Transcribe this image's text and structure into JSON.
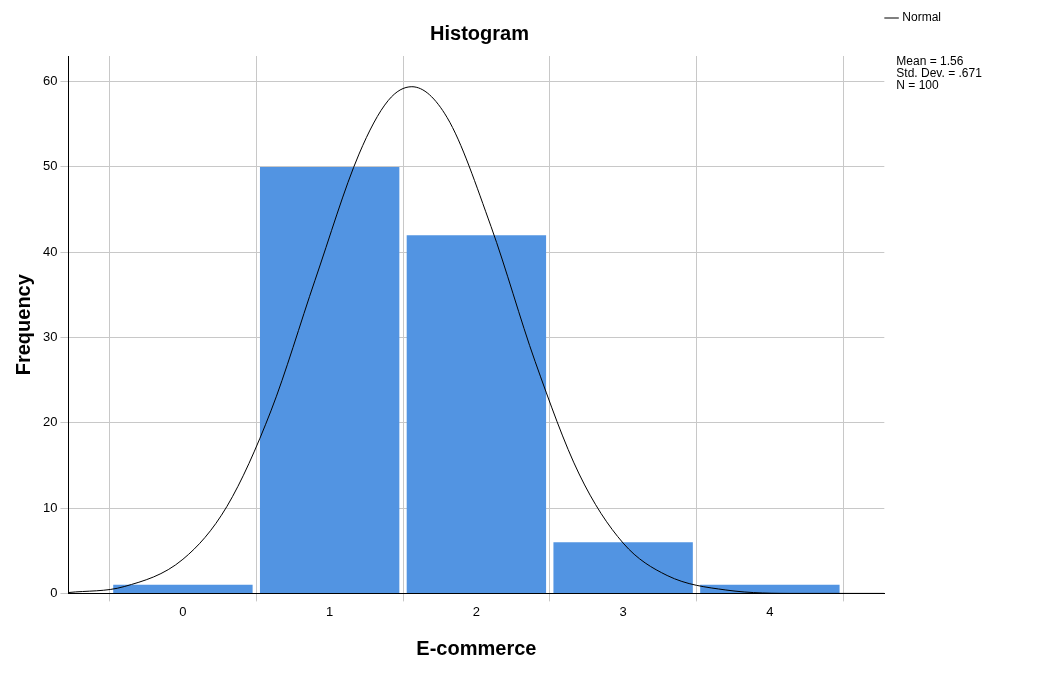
{
  "chart_data": {
    "type": "histogram",
    "title": "Histogram",
    "xlabel": "E-commerce",
    "ylabel": "Frequency",
    "bins": [
      -0.5,
      0.5,
      1.5,
      2.5,
      3.5,
      4.5
    ],
    "values": [
      1,
      50,
      42,
      6,
      1
    ],
    "color": "#5294e2",
    "series": [
      {
        "name": "Normal",
        "type": "line",
        "color": "#000000",
        "x": [
          -0.78,
          -0.4,
          0,
          0.3,
          0.6,
          0.9,
          1.2,
          1.4,
          1.56,
          1.8,
          2.1,
          2.4,
          2.7,
          3.0,
          3.3,
          3.7,
          4.2,
          4.78
        ],
        "values": [
          0.1,
          0.8,
          4,
          10.2,
          21.4,
          36.7,
          51.5,
          57.8,
          59.4,
          55.8,
          43,
          27.2,
          14,
          5.9,
          2.1,
          0.4,
          0,
          0
        ]
      }
    ],
    "xlim": [
      -0.78,
      4.78
    ],
    "xticks": [
      0,
      1,
      2,
      3,
      4
    ],
    "ylim": [
      0,
      63
    ],
    "yticks": [
      0,
      10,
      20,
      30,
      40,
      50,
      60
    ],
    "grid": true,
    "legend": "top right",
    "annotations": [
      "Mean = 1.56",
      "Std. Dev. = .671",
      "N = 100"
    ]
  }
}
